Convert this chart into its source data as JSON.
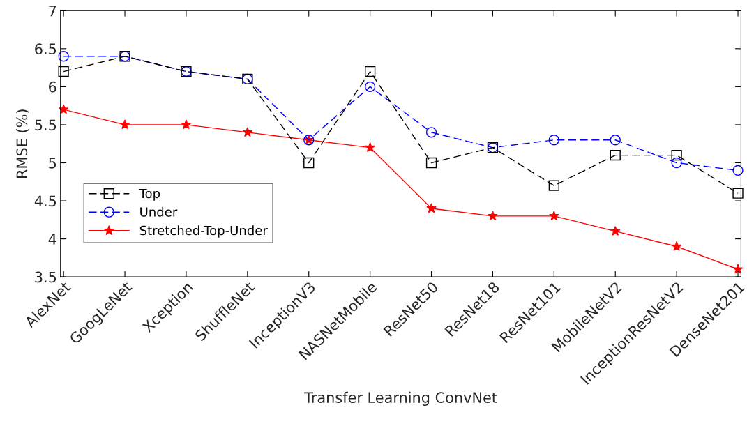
{
  "chart_data": {
    "type": "line",
    "xlabel": "Transfer Learning ConvNet",
    "ylabel": "RMSE (%)",
    "categories": [
      "AlexNet",
      "GoogLeNet",
      "Xception",
      "ShuffleNet",
      "InceptionV3",
      "NASNetMobile",
      "ResNet50",
      "ResNet18",
      "ResNet101",
      "MobileNetV2",
      "InceptionResNetV2",
      "DenseNet201"
    ],
    "series": [
      {
        "name": "Top",
        "color": "#000000",
        "marker": "square",
        "line_style": "dashed",
        "values": [
          6.2,
          6.4,
          6.2,
          6.1,
          5.0,
          6.2,
          5.0,
          5.2,
          4.7,
          5.1,
          5.1,
          4.6
        ]
      },
      {
        "name": "Under",
        "color": "#0000ff",
        "marker": "circle",
        "line_style": "dashed",
        "values": [
          6.4,
          6.4,
          6.2,
          6.1,
          5.3,
          6.0,
          5.4,
          5.2,
          5.3,
          5.3,
          5.0,
          4.9
        ]
      },
      {
        "name": "Stretched-Top-Under",
        "color": "#ff0000",
        "marker": "star",
        "line_style": "solid",
        "values": [
          5.7,
          5.5,
          5.5,
          5.4,
          5.3,
          5.2,
          4.4,
          4.3,
          4.3,
          4.1,
          3.9,
          3.6
        ]
      }
    ],
    "ylim": [
      3.5,
      7
    ],
    "yticks": [
      3.5,
      4,
      4.5,
      5,
      5.5,
      6,
      6.5,
      7
    ],
    "grid": false,
    "legend": "left"
  }
}
